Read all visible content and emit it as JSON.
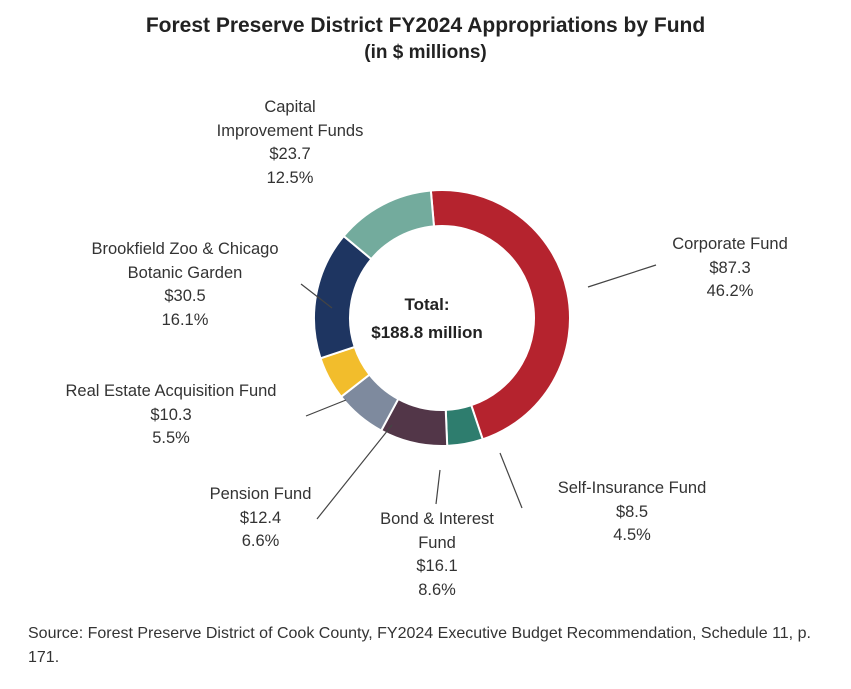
{
  "title": "Forest Preserve District FY2024 Appropriations by Fund",
  "subtitle": "(in $ millions)",
  "center": {
    "line1": "Total:",
    "line2": "$188.8 million"
  },
  "source": "Source: Forest Preserve District of Cook County, FY2024 Executive Budget Recommendation, Schedule 11, p. 171.",
  "chart_data": {
    "type": "pie",
    "title": "Forest Preserve District FY2024 Appropriations by Fund",
    "subtitle": "(in $ millions)",
    "total": 188.8,
    "slices": [
      {
        "name_lines": [
          "Corporate Fund"
        ],
        "value": 87.3,
        "value_label": "$87.3",
        "percent": 46.2,
        "percent_label": "46.2%",
        "color": "#B5232E"
      },
      {
        "name_lines": [
          "Self-Insurance Fund"
        ],
        "value": 8.5,
        "value_label": "$8.5",
        "percent": 4.5,
        "percent_label": "4.5%",
        "color": "#2E7D6E"
      },
      {
        "name_lines": [
          "Bond & Interest",
          "Fund"
        ],
        "value": 16.1,
        "value_label": "$16.1",
        "percent": 8.6,
        "percent_label": "8.6%",
        "color": "#523648"
      },
      {
        "name_lines": [
          "Pension Fund"
        ],
        "value": 12.4,
        "value_label": "$12.4",
        "percent": 6.6,
        "percent_label": "6.6%",
        "color": "#7E8A9E"
      },
      {
        "name_lines": [
          "Real Estate Acquisition Fund"
        ],
        "value": 10.3,
        "value_label": "$10.3",
        "percent": 5.5,
        "percent_label": "5.5%",
        "color": "#F2BD2C"
      },
      {
        "name_lines": [
          "Brookfield Zoo & Chicago",
          "Botanic Garden"
        ],
        "value": 30.5,
        "value_label": "$30.5",
        "percent": 16.1,
        "percent_label": "16.1%",
        "color": "#1E3561"
      },
      {
        "name_lines": [
          "Capital",
          "Improvement Funds"
        ],
        "value": 23.7,
        "value_label": "$23.7",
        "percent": 12.5,
        "percent_label": "12.5%",
        "color": "#73AB9D"
      }
    ]
  }
}
